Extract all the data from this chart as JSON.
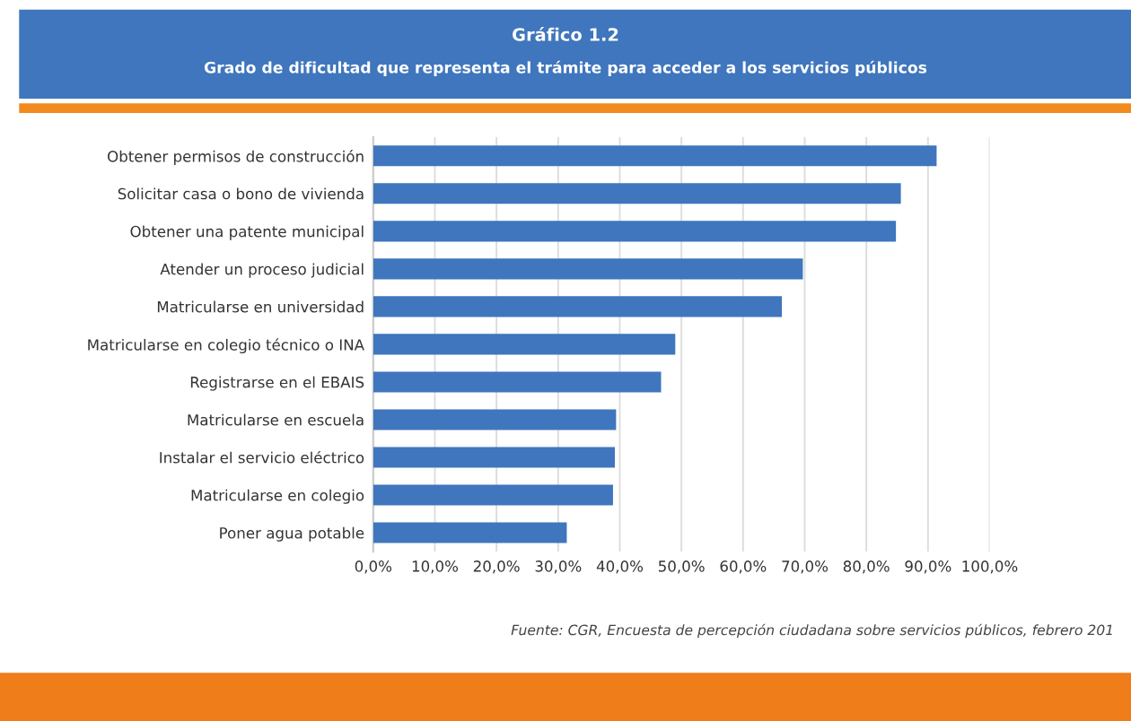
{
  "chart_data": {
    "type": "bar",
    "orientation": "horizontal",
    "title": "Gráfico 1.2",
    "subtitle": "Grado de dificultad que representa el trámite para acceder a los servicios públicos",
    "categories": [
      "Obtener permisos de construcción",
      "Solicitar casa o bono de vivienda",
      "Obtener una patente municipal",
      "Atender un proceso judicial",
      "Matricularse en universidad",
      "Matricularse en colegio técnico o INA",
      "Registrarse en el EBAIS",
      "Matricularse en escuela",
      "Instalar el servicio eléctrico",
      "Matricularse en colegio",
      "Poner agua potable"
    ],
    "values": [
      91.4,
      85.6,
      84.8,
      69.7,
      66.3,
      49.0,
      46.7,
      39.4,
      39.2,
      38.9,
      31.4
    ],
    "color": "#3f76bd",
    "xlim": [
      0,
      100
    ],
    "xticks": [
      {
        "value": 0,
        "label": "0,0%"
      },
      {
        "value": 10,
        "label": "10,0%"
      },
      {
        "value": 20,
        "label": "20,0%"
      },
      {
        "value": 30,
        "label": "30,0%"
      },
      {
        "value": 40,
        "label": "40,0%"
      },
      {
        "value": 50,
        "label": "50,0%"
      },
      {
        "value": 60,
        "label": "60,0%"
      },
      {
        "value": 70,
        "label": "70,0%"
      },
      {
        "value": 80,
        "label": "80,0%"
      },
      {
        "value": 90,
        "label": "90,0%"
      },
      {
        "value": 100,
        "label": "100,0%"
      }
    ],
    "grid": "x",
    "annotations": [
      "Fuente: CGR, Encuesta de percepción ciudadana sobre servicios públicos, febrero 201"
    ]
  }
}
